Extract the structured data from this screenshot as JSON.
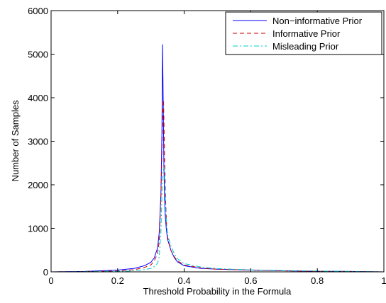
{
  "chart_data": {
    "type": "line",
    "title": "",
    "xlabel": "Threshold Probability in the Formula",
    "ylabel": "Number of Samples",
    "xlim": [
      0,
      1
    ],
    "ylim": [
      0,
      6000
    ],
    "xticks": [
      0,
      0.2,
      0.4,
      0.6,
      0.8,
      1
    ],
    "xtick_labels": [
      "0",
      "0.2",
      "0.4",
      "0.6",
      "0.8",
      "1"
    ],
    "yticks": [
      0,
      1000,
      2000,
      3000,
      4000,
      5000,
      6000
    ],
    "ytick_labels": [
      "0",
      "1000",
      "2000",
      "3000",
      "4000",
      "5000",
      "6000"
    ],
    "grid": false,
    "legend_position": "top-right",
    "series": [
      {
        "name": "Non−informative Prior",
        "color": "#0000ff",
        "line_style": "solid",
        "x": [
          0,
          0.1,
          0.2,
          0.25,
          0.28,
          0.3,
          0.31,
          0.32,
          0.325,
          0.33,
          0.333,
          0.335,
          0.337,
          0.339,
          0.341,
          0.343,
          0.346,
          0.35,
          0.36,
          0.37,
          0.38,
          0.4,
          0.45,
          0.5,
          0.6,
          0.7,
          0.8,
          0.9,
          1
        ],
        "y": [
          0,
          10,
          40,
          80,
          140,
          220,
          320,
          550,
          900,
          1800,
          3200,
          5220,
          3800,
          2400,
          1700,
          1300,
          1000,
          750,
          500,
          330,
          230,
          140,
          80,
          60,
          40,
          25,
          15,
          10,
          0
        ]
      },
      {
        "name": "Informative Prior",
        "color": "#cc0000",
        "line_style": "dashed",
        "x": [
          0,
          0.1,
          0.2,
          0.25,
          0.28,
          0.3,
          0.31,
          0.32,
          0.325,
          0.33,
          0.335,
          0.338,
          0.341,
          0.344,
          0.347,
          0.35,
          0.36,
          0.37,
          0.38,
          0.4,
          0.45,
          0.5,
          0.6,
          0.7,
          0.8,
          0.9,
          1
        ],
        "y": [
          0,
          5,
          20,
          50,
          100,
          160,
          250,
          420,
          700,
          1700,
          3500,
          3950,
          2700,
          1700,
          1100,
          800,
          500,
          350,
          250,
          160,
          90,
          60,
          40,
          25,
          15,
          8,
          0
        ]
      },
      {
        "name": "Misleading Prior",
        "color": "#00cccc",
        "line_style": "dash-dot",
        "x": [
          0,
          0.1,
          0.2,
          0.25,
          0.28,
          0.3,
          0.31,
          0.32,
          0.325,
          0.33,
          0.335,
          0.34,
          0.343,
          0.346,
          0.35,
          0.36,
          0.37,
          0.38,
          0.4,
          0.45,
          0.5,
          0.6,
          0.7,
          0.8,
          0.9,
          1
        ],
        "y": [
          0,
          5,
          10,
          25,
          50,
          80,
          120,
          200,
          350,
          900,
          2300,
          2400,
          1700,
          1200,
          850,
          600,
          420,
          300,
          190,
          110,
          75,
          45,
          30,
          20,
          10,
          0
        ]
      }
    ]
  }
}
